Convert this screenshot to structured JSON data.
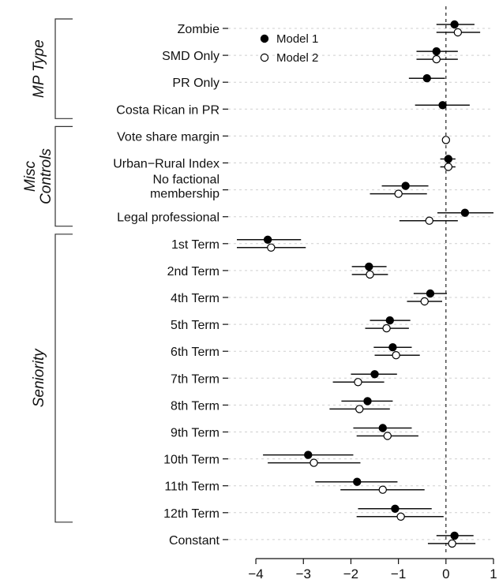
{
  "chart_data": {
    "type": "scatter",
    "subtype": "coefficient-plot",
    "title": "",
    "xlabel": "",
    "ylabel": "",
    "xlim": [
      -4.4,
      1
    ],
    "xticks": [
      -4,
      -3,
      -2,
      -1,
      0,
      1
    ],
    "reference_line": 0,
    "grid": true,
    "legend_position": "top-left",
    "categories": [
      "Zombie",
      "SMD Only",
      "PR Only",
      "Costa Rican in PR",
      "Vote share margin",
      "Urban−Rural Index",
      "No factional membership",
      "Legal professional",
      "1st Term",
      "2nd Term",
      "4th Term",
      "5th Term",
      "6th Term",
      "7th Term",
      "8th Term",
      "9th Term",
      "10th Term",
      "11th Term",
      "12th Term",
      "Constant"
    ],
    "category_lines": [
      [
        "Zombie"
      ],
      [
        "SMD Only"
      ],
      [
        "PR Only"
      ],
      [
        "Costa Rican in PR"
      ],
      [
        "Vote share margin"
      ],
      [
        "Urban−Rural Index"
      ],
      [
        "No factional",
        "membership"
      ],
      [
        "Legal professional"
      ],
      [
        "1st Term"
      ],
      [
        "2nd Term"
      ],
      [
        "4th Term"
      ],
      [
        "5th Term"
      ],
      [
        "6th Term"
      ],
      [
        "7th Term"
      ],
      [
        "8th Term"
      ],
      [
        "9th Term"
      ],
      [
        "10th Term"
      ],
      [
        "11th Term"
      ],
      [
        "12th Term"
      ],
      [
        "Constant"
      ]
    ],
    "series": [
      {
        "name": "Model 1",
        "marker": "filled-circle",
        "estimates": [
          0.18,
          -0.2,
          -0.4,
          -0.07,
          null,
          0.05,
          -0.85,
          0.4,
          -3.75,
          -1.62,
          -0.33,
          -1.18,
          -1.12,
          -1.5,
          -1.65,
          -1.33,
          -2.9,
          -1.87,
          -1.07,
          0.18
        ],
        "lower": [
          -0.2,
          -0.62,
          -0.78,
          -0.65,
          null,
          -0.12,
          -1.35,
          -0.18,
          -4.4,
          -1.98,
          -0.68,
          -1.6,
          -1.52,
          -2.0,
          -2.2,
          -1.95,
          -3.85,
          -2.75,
          -1.85,
          -0.2
        ],
        "upper": [
          0.6,
          0.25,
          -0.02,
          0.5,
          null,
          0.2,
          -0.37,
          1.0,
          -3.05,
          -1.25,
          0.02,
          -0.75,
          -0.72,
          -1.03,
          -1.12,
          -0.72,
          -1.95,
          -1.02,
          -0.3,
          0.58
        ]
      },
      {
        "name": "Model 2",
        "marker": "open-circle",
        "estimates": [
          0.25,
          -0.2,
          null,
          null,
          0.0,
          0.05,
          -1.0,
          -0.35,
          -3.68,
          -1.6,
          -0.45,
          -1.25,
          -1.05,
          -1.85,
          -1.82,
          -1.23,
          -2.78,
          -1.33,
          -0.95,
          0.13
        ],
        "lower": [
          -0.2,
          -0.62,
          null,
          null,
          -0.04,
          -0.12,
          -1.6,
          -0.98,
          -4.4,
          -1.98,
          -0.82,
          -1.7,
          -1.5,
          -2.38,
          -2.45,
          -1.88,
          -3.75,
          -2.22,
          -1.88,
          -0.38
        ],
        "upper": [
          0.72,
          0.25,
          null,
          null,
          0.04,
          0.2,
          -0.4,
          0.25,
          -2.95,
          -1.22,
          -0.08,
          -0.78,
          -0.55,
          -1.3,
          -1.18,
          -0.58,
          -1.8,
          -0.45,
          -0.05,
          0.62
        ]
      }
    ],
    "groups": [
      {
        "label": "MP Type",
        "from": "Zombie",
        "to": "Costa Rican in PR"
      },
      {
        "label": [
          "Misc",
          "Controls"
        ],
        "from": "Vote share margin",
        "to": "Legal professional"
      },
      {
        "label": "Seniority",
        "from": "1st Term",
        "to": "12th Term"
      }
    ]
  }
}
